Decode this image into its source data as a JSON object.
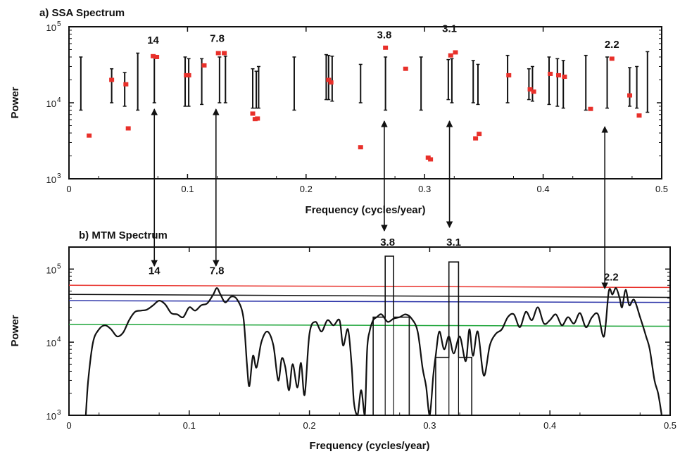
{
  "chart_data": [
    {
      "panel": "a",
      "type": "scatter",
      "title": "a) SSA Spectrum",
      "xlabel": "Frequency (cycles/year)",
      "ylabel": "Power",
      "xlim": [
        0,
        0.5
      ],
      "ylim": [
        1000,
        100000
      ],
      "yscale": "log",
      "xticks": [
        "0",
        "0.1",
        "0.2",
        "0.3",
        "0.4",
        "0.5"
      ],
      "yticks": [
        {
          "base": "10",
          "exp": "3",
          "value": 1000
        },
        {
          "base": "10",
          "exp": "4",
          "value": 10000
        },
        {
          "base": "10",
          "exp": "5",
          "value": 100000
        }
      ],
      "grid": false,
      "point_color": "#e8302a",
      "points": [
        {
          "x": 0.017,
          "y": 3700
        },
        {
          "x": 0.036,
          "y": 20000
        },
        {
          "x": 0.048,
          "y": 17500
        },
        {
          "x": 0.05,
          "y": 4600
        },
        {
          "x": 0.071,
          "y": 41000
        },
        {
          "x": 0.074,
          "y": 40000
        },
        {
          "x": 0.099,
          "y": 23000
        },
        {
          "x": 0.101,
          "y": 23000
        },
        {
          "x": 0.114,
          "y": 31000
        },
        {
          "x": 0.126,
          "y": 45000
        },
        {
          "x": 0.131,
          "y": 45000
        },
        {
          "x": 0.155,
          "y": 7200
        },
        {
          "x": 0.157,
          "y": 6100
        },
        {
          "x": 0.159,
          "y": 6200
        },
        {
          "x": 0.219,
          "y": 20000
        },
        {
          "x": 0.221,
          "y": 18500
        },
        {
          "x": 0.246,
          "y": 2600
        },
        {
          "x": 0.267,
          "y": 53000
        },
        {
          "x": 0.284,
          "y": 28000
        },
        {
          "x": 0.303,
          "y": 1900
        },
        {
          "x": 0.305,
          "y": 1800
        },
        {
          "x": 0.322,
          "y": 42000
        },
        {
          "x": 0.326,
          "y": 46000
        },
        {
          "x": 0.343,
          "y": 3400
        },
        {
          "x": 0.346,
          "y": 3900
        },
        {
          "x": 0.371,
          "y": 23000
        },
        {
          "x": 0.389,
          "y": 15000
        },
        {
          "x": 0.392,
          "y": 14000
        },
        {
          "x": 0.406,
          "y": 24000
        },
        {
          "x": 0.413,
          "y": 23000
        },
        {
          "x": 0.418,
          "y": 22000
        },
        {
          "x": 0.44,
          "y": 8300
        },
        {
          "x": 0.458,
          "y": 38000
        },
        {
          "x": 0.473,
          "y": 12500
        },
        {
          "x": 0.481,
          "y": 6800
        }
      ],
      "error_bars": [
        {
          "x": 0.01,
          "low": 8000,
          "high": 40000
        },
        {
          "x": 0.036,
          "low": 10000,
          "high": 28000
        },
        {
          "x": 0.047,
          "low": 9000,
          "high": 25000
        },
        {
          "x": 0.058,
          "low": 8000,
          "high": 45000
        },
        {
          "x": 0.072,
          "low": 10000,
          "high": 42000
        },
        {
          "x": 0.098,
          "low": 9000,
          "high": 40000
        },
        {
          "x": 0.101,
          "low": 9000,
          "high": 38000
        },
        {
          "x": 0.112,
          "low": 9500,
          "high": 38000
        },
        {
          "x": 0.127,
          "low": 10000,
          "high": 40000
        },
        {
          "x": 0.132,
          "low": 10000,
          "high": 41000
        },
        {
          "x": 0.155,
          "low": 8500,
          "high": 28000
        },
        {
          "x": 0.158,
          "low": 8500,
          "high": 26000
        },
        {
          "x": 0.16,
          "low": 8500,
          "high": 30000
        },
        {
          "x": 0.19,
          "low": 8000,
          "high": 40000
        },
        {
          "x": 0.217,
          "low": 11000,
          "high": 43000
        },
        {
          "x": 0.219,
          "low": 11000,
          "high": 42000
        },
        {
          "x": 0.222,
          "low": 10500,
          "high": 41000
        },
        {
          "x": 0.246,
          "low": 10000,
          "high": 32000
        },
        {
          "x": 0.267,
          "low": 8000,
          "high": 40000
        },
        {
          "x": 0.297,
          "low": 8000,
          "high": 40000
        },
        {
          "x": 0.32,
          "low": 11000,
          "high": 37000
        },
        {
          "x": 0.323,
          "low": 10000,
          "high": 38000
        },
        {
          "x": 0.341,
          "low": 10000,
          "high": 36000
        },
        {
          "x": 0.345,
          "low": 9500,
          "high": 32000
        },
        {
          "x": 0.37,
          "low": 10000,
          "high": 42000
        },
        {
          "x": 0.388,
          "low": 11000,
          "high": 28000
        },
        {
          "x": 0.391,
          "low": 10500,
          "high": 30000
        },
        {
          "x": 0.405,
          "low": 9500,
          "high": 40000
        },
        {
          "x": 0.412,
          "low": 9000,
          "high": 38000
        },
        {
          "x": 0.417,
          "low": 8500,
          "high": 36000
        },
        {
          "x": 0.436,
          "low": 8000,
          "high": 42000
        },
        {
          "x": 0.454,
          "low": 8500,
          "high": 40000
        },
        {
          "x": 0.473,
          "low": 9000,
          "high": 29000
        },
        {
          "x": 0.479,
          "low": 8500,
          "high": 30000
        },
        {
          "x": 0.488,
          "low": 7500,
          "high": 47000
        }
      ],
      "annotations": [
        {
          "text": "14",
          "x": 0.071,
          "y": 60000
        },
        {
          "text": "7.8",
          "x": 0.125,
          "y": 63000
        },
        {
          "text": "3.8",
          "x": 0.266,
          "y": 70000
        },
        {
          "text": "3.1",
          "x": 0.321,
          "y": 85000
        },
        {
          "text": "2.2",
          "x": 0.458,
          "y": 53000
        }
      ]
    },
    {
      "panel": "b",
      "type": "line",
      "title": "b) MTM Spectrum",
      "xlabel": "Frequency (cycles/year)",
      "ylabel": "Power",
      "xlim": [
        0,
        0.5
      ],
      "ylim": [
        1000,
        200000
      ],
      "yscale": "log",
      "xticks": [
        "0",
        "0.1",
        "0.2",
        "0.3",
        "0.4",
        "0.5"
      ],
      "yticks": [
        {
          "base": "10",
          "exp": "3",
          "value": 1000
        },
        {
          "base": "10",
          "exp": "4",
          "value": 10000
        },
        {
          "base": "10",
          "exp": "5",
          "value": 100000
        }
      ],
      "grid": false,
      "spectrum": {
        "x": [
          0.014,
          0.016,
          0.02,
          0.025,
          0.03,
          0.035,
          0.04,
          0.045,
          0.05,
          0.055,
          0.06,
          0.065,
          0.07,
          0.075,
          0.08,
          0.085,
          0.09,
          0.095,
          0.1,
          0.105,
          0.11,
          0.115,
          0.12,
          0.123,
          0.126,
          0.13,
          0.135,
          0.14,
          0.145,
          0.148,
          0.15,
          0.153,
          0.156,
          0.16,
          0.165,
          0.17,
          0.174,
          0.177,
          0.18,
          0.183,
          0.186,
          0.19,
          0.193,
          0.196,
          0.2,
          0.205,
          0.21,
          0.215,
          0.22,
          0.225,
          0.228,
          0.232,
          0.235,
          0.237,
          0.24,
          0.243,
          0.246,
          0.248,
          0.25,
          0.253,
          0.256,
          0.26,
          0.265,
          0.27,
          0.275,
          0.28,
          0.285,
          0.29,
          0.294,
          0.297,
          0.3,
          0.303,
          0.305,
          0.308,
          0.312,
          0.316,
          0.32,
          0.325,
          0.33,
          0.333,
          0.336,
          0.34,
          0.345,
          0.35,
          0.355,
          0.36,
          0.365,
          0.37,
          0.375,
          0.38,
          0.385,
          0.39,
          0.395,
          0.4,
          0.405,
          0.41,
          0.415,
          0.42,
          0.425,
          0.43,
          0.435,
          0.44,
          0.445,
          0.449,
          0.452,
          0.455,
          0.458,
          0.46,
          0.463,
          0.466,
          0.47,
          0.475,
          0.48,
          0.483,
          0.487,
          0.49,
          0.493
        ],
        "y": [
          1000,
          3000,
          10000,
          15000,
          17000,
          15000,
          12000,
          13500,
          20000,
          26000,
          27000,
          28000,
          32000,
          37000,
          33000,
          25000,
          24000,
          22000,
          30000,
          27000,
          32000,
          34000,
          45000,
          55000,
          45000,
          35000,
          42000,
          38000,
          22000,
          5000,
          2500,
          6500,
          4500,
          10000,
          14000,
          9000,
          3000,
          6000,
          4500,
          2200,
          5000,
          2400,
          5200,
          1900,
          13000,
          19000,
          14000,
          20000,
          17000,
          20000,
          9000,
          15000,
          5000,
          1500,
          1000,
          2200,
          1000,
          8000,
          14000,
          20000,
          22000,
          24000,
          19000,
          21000,
          22000,
          24000,
          21000,
          14000,
          4500,
          2500,
          1000,
          3500,
          6500,
          14000,
          8000,
          12000,
          7000,
          12000,
          5500,
          15000,
          6500,
          14000,
          3500,
          9000,
          13000,
          15000,
          22000,
          24000,
          16000,
          26000,
          20000,
          30000,
          18000,
          20000,
          24000,
          17000,
          22000,
          18000,
          25000,
          16000,
          22000,
          24000,
          12000,
          50000,
          45000,
          55000,
          40000,
          30000,
          52000,
          32000,
          38000,
          22000,
          12000,
          8000,
          3000,
          2000,
          1000
        ]
      },
      "boxes": [
        {
          "x_start": 0.253,
          "x_end": 0.283,
          "y_base": 22000,
          "x_peak_start": 0.263,
          "x_peak_end": 0.27,
          "y_peak": 150000
        },
        {
          "x_start": 0.305,
          "x_end": 0.335,
          "y_base": 6200,
          "x_peak_start": 0.316,
          "x_peak_end": 0.324,
          "y_peak": 125000
        }
      ],
      "reference_lines": [
        {
          "color": "#e8302a",
          "y_start": 60000,
          "y_end": 56000
        },
        {
          "color": "#111111",
          "y_start": 45000,
          "y_end": 41000
        },
        {
          "color": "#2b33a8",
          "y_start": 37000,
          "y_end": 35000
        },
        {
          "color": "#1ea53a",
          "y_start": 17500,
          "y_end": 16500
        }
      ],
      "annotations": [
        {
          "text": "14",
          "x": 0.071,
          "y": 85000
        },
        {
          "text": "7.8",
          "x": 0.123,
          "y": 85000
        },
        {
          "text": "3.8",
          "x": 0.265,
          "y": 210000
        },
        {
          "text": "3.1",
          "x": 0.32,
          "y": 210000
        },
        {
          "text": "2.2",
          "x": 0.451,
          "y": 70000
        }
      ]
    }
  ],
  "arrows": [
    {
      "x": 0.072
    },
    {
      "x": 0.124
    },
    {
      "x": 0.266
    },
    {
      "x": 0.321
    },
    {
      "x": 0.452
    }
  ]
}
